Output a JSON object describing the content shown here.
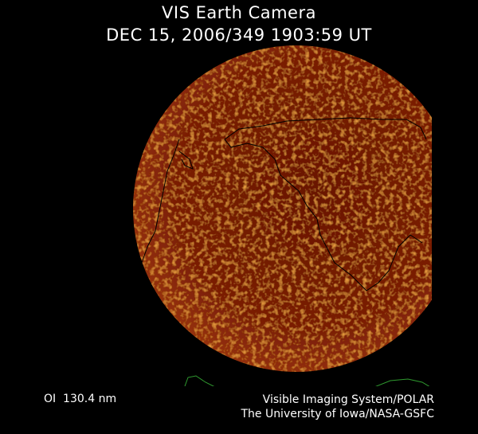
{
  "title": {
    "line1": "VIS Earth Camera",
    "line2": "DEC 15, 2006/349 1903:59 UT"
  },
  "caption": {
    "band": "OI  130.4 nm",
    "credit_line1": "Visible Imaging System/POLAR",
    "credit_line2": "The University of Iowa/NASA-GSFC"
  },
  "colors": {
    "disk": "#7a1c06",
    "glow": "#c8500e",
    "coastline": "#000000",
    "terminator": "#2f9a2f"
  }
}
